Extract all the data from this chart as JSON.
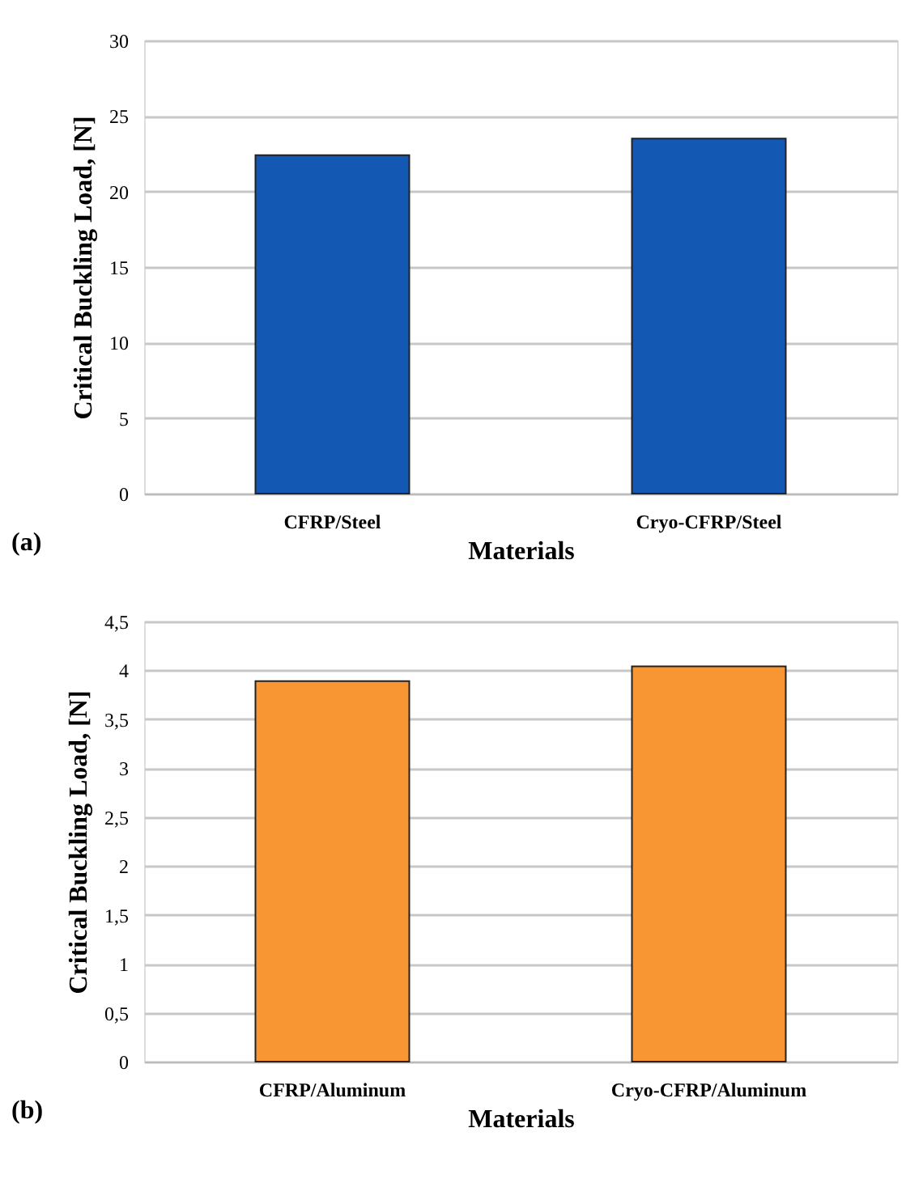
{
  "chart_data": [
    {
      "type": "bar",
      "categories": [
        "CFRP/Steel",
        "Cryo-CFRP/Steel"
      ],
      "values": [
        22.4,
        23.5
      ],
      "color": "#1359b3",
      "xlabel": "Materials",
      "ylabel": "Critical Buckling Load,  [N]",
      "ylim": [
        0,
        30
      ],
      "yticks": [
        0,
        5,
        10,
        15,
        20,
        25,
        30
      ],
      "grid": "y",
      "annotations": [
        "(a)"
      ]
    },
    {
      "type": "bar",
      "categories": [
        "CFRP/Aluminum",
        "Cryo-CFRP/Aluminum"
      ],
      "values": [
        3.89,
        4.04
      ],
      "color": "#f79632",
      "xlabel": "Materials",
      "ylabel": "Critical Buckling Load,  [N]",
      "ylim": [
        0,
        4.5
      ],
      "yticks": [
        0,
        {
          "value": 0.5,
          "label": "0,5"
        },
        1,
        {
          "value": 1.5,
          "label": "1,5"
        },
        2,
        {
          "value": 2.5,
          "label": "2,5"
        },
        3,
        {
          "value": 3.5,
          "label": "3,5"
        },
        4,
        {
          "value": 4.5,
          "label": "4,5"
        }
      ],
      "grid": "y",
      "annotations": [
        "(b)"
      ]
    }
  ]
}
